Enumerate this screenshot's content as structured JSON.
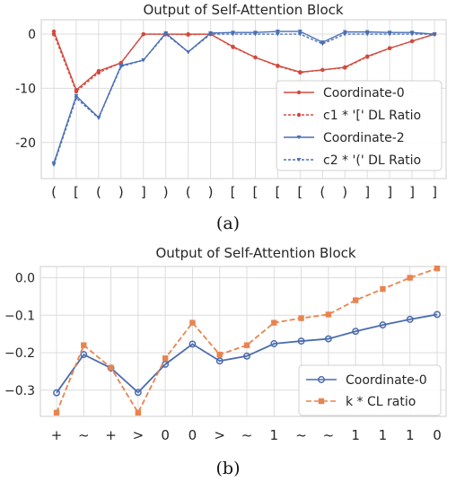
{
  "captions": [
    "(a)",
    "(b)"
  ],
  "colors": {
    "red": "#d04a3e",
    "blue": "#4a6fb5",
    "orange": "#e8844f",
    "navy": "#4a6cae"
  },
  "chart_data": [
    {
      "type": "line",
      "title": "Output of Self-Attention Block",
      "categories": [
        "(",
        "[",
        "(",
        ")",
        "]",
        ")",
        "(",
        ")",
        "[",
        "[",
        "[",
        "[",
        "(",
        ")",
        "]",
        "]",
        "]",
        "]"
      ],
      "ylim": [
        -25,
        1
      ],
      "yticks": [
        0,
        -10,
        -20
      ],
      "grid": true,
      "legend_position": "lower-right",
      "series": [
        {
          "name": "Coordinate-0",
          "style": "solid",
          "marker": "dot",
          "color": "#d04a3e",
          "values": [
            0.5,
            -10.3,
            -6.8,
            -5.3,
            0,
            0,
            0,
            0,
            -2.3,
            -4.3,
            -5.8,
            -7.0,
            -6.6,
            -6.1,
            -4.1,
            -2.6,
            -1.3,
            0
          ]
        },
        {
          "name": "c1 * '[' DL Ratio",
          "style": "dashed",
          "marker": "dot",
          "color": "#d04a3e",
          "values": [
            0,
            -10.6,
            -7.1,
            -5.3,
            0,
            0,
            -0.1,
            0,
            -2.4,
            -4.3,
            -5.9,
            -7.1,
            -6.6,
            -6.2,
            -4.2,
            -2.6,
            -1.3,
            0
          ]
        },
        {
          "name": "Coordinate-2",
          "style": "solid",
          "marker": "tri",
          "color": "#4a6fb5",
          "values": [
            -23.8,
            -11.4,
            -15.4,
            -5.8,
            -4.8,
            0.2,
            -3.3,
            0.2,
            0.3,
            0.3,
            0.5,
            0.5,
            -1.5,
            0.4,
            0.4,
            0.3,
            0.3,
            0
          ]
        },
        {
          "name": "c2 * '(' DL Ratio",
          "style": "dashed",
          "marker": "tri",
          "color": "#4a6fb5",
          "values": [
            -24.1,
            -11.8,
            -15.5,
            -6.0,
            -4.8,
            0,
            -3.3,
            0,
            0,
            0,
            0,
            0,
            -1.8,
            0,
            0,
            0,
            0,
            0
          ]
        }
      ]
    },
    {
      "type": "line",
      "title": "Output of Self-Attention Block",
      "categories": [
        "+",
        "~",
        "+",
        ">",
        "0",
        "0",
        ">",
        "~",
        "1",
        "~",
        "~",
        "1",
        "1",
        "1",
        "0"
      ],
      "ylim": [
        -0.37,
        0.03
      ],
      "yticks": [
        "0.0",
        "−0.1",
        "−0.2",
        "−0.3"
      ],
      "grid": true,
      "legend_position": "lower-right",
      "series": [
        {
          "name": "Coordinate-0",
          "style": "solid",
          "marker": "circle",
          "color": "#4a6cae",
          "values": [
            -0.307,
            -0.205,
            -0.241,
            -0.306,
            -0.231,
            -0.177,
            -0.222,
            -0.209,
            -0.176,
            -0.169,
            -0.163,
            -0.143,
            -0.126,
            -0.111,
            -0.098
          ]
        },
        {
          "name": "k * CL ratio",
          "style": "dashed",
          "marker": "square",
          "color": "#e8844f",
          "values": [
            -0.36,
            -0.18,
            -0.24,
            -0.36,
            -0.215,
            -0.12,
            -0.205,
            -0.18,
            -0.12,
            -0.108,
            -0.098,
            -0.06,
            -0.03,
            0.0,
            0.025
          ]
        }
      ]
    }
  ]
}
